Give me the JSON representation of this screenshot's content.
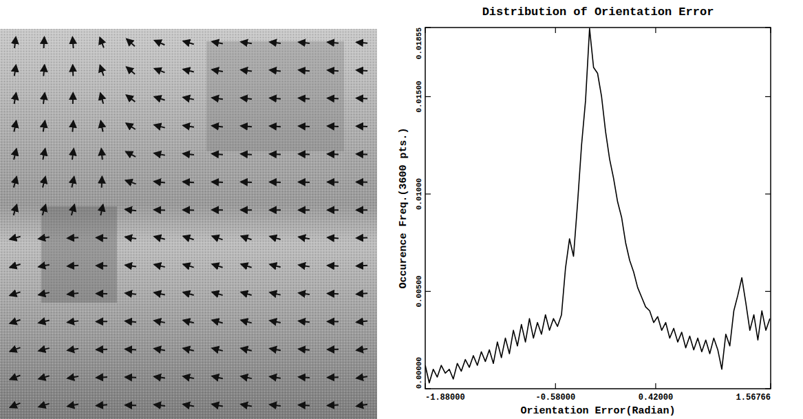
{
  "chart_data": {
    "type": "line",
    "title": "Distribution of Orientation Error",
    "x_label": "Orientation Error(Radian)",
    "y_label": "Occurence Freq.(3600 pts.)",
    "color": "#000000",
    "grid": false,
    "xlim": [
      -1.88,
      1.56766
    ],
    "xticks": [
      {
        "value": -1.88,
        "label": "-1.88000"
      },
      {
        "value": -0.58,
        "label": "-0.58000"
      },
      {
        "value": 0.42,
        "label": "0.42000"
      },
      {
        "value": 1.56766,
        "label": "1.56766"
      }
    ],
    "ylim": [
      0,
      0.01855
    ],
    "yticks": [
      {
        "value": 0,
        "label": "0.00000"
      },
      {
        "value": 0.005,
        "label": "0.00500"
      },
      {
        "value": 0.01,
        "label": "0.01000"
      },
      {
        "value": 0.015,
        "label": "0.01500"
      },
      {
        "value": 0.01855,
        "label": "0.01855"
      }
    ],
    "x": [
      -1.88,
      -1.84,
      -1.8,
      -1.76,
      -1.72,
      -1.68,
      -1.64,
      -1.6,
      -1.56,
      -1.52,
      -1.48,
      -1.44,
      -1.4,
      -1.36,
      -1.32,
      -1.28,
      -1.24,
      -1.2,
      -1.16,
      -1.12,
      -1.08,
      -1.04,
      -1.0,
      -0.96,
      -0.92,
      -0.88,
      -0.84,
      -0.8,
      -0.76,
      -0.72,
      -0.68,
      -0.64,
      -0.6,
      -0.56,
      -0.52,
      -0.48,
      -0.44,
      -0.4,
      -0.36,
      -0.32,
      -0.28,
      -0.24,
      -0.2,
      -0.16,
      -0.12,
      -0.08,
      -0.04,
      0.0,
      0.04,
      0.08,
      0.12,
      0.16,
      0.2,
      0.24,
      0.28,
      0.32,
      0.36,
      0.4,
      0.44,
      0.48,
      0.52,
      0.56,
      0.6,
      0.64,
      0.68,
      0.72,
      0.76,
      0.8,
      0.84,
      0.88,
      0.92,
      0.96,
      1.0,
      1.04,
      1.08,
      1.12,
      1.16,
      1.2,
      1.24,
      1.28,
      1.32,
      1.36,
      1.4,
      1.44,
      1.48,
      1.52,
      1.56
    ],
    "values": [
      0.0012,
      0.0003,
      0.001,
      0.0006,
      0.0012,
      0.0008,
      0.001,
      0.0005,
      0.0013,
      0.0009,
      0.0015,
      0.0011,
      0.0017,
      0.0012,
      0.0019,
      0.0014,
      0.002,
      0.0013,
      0.0024,
      0.0016,
      0.0026,
      0.0018,
      0.003,
      0.0022,
      0.0033,
      0.0024,
      0.0036,
      0.0026,
      0.0034,
      0.0028,
      0.0038,
      0.003,
      0.0036,
      0.0032,
      0.0038,
      0.0062,
      0.0077,
      0.0068,
      0.0095,
      0.0125,
      0.0148,
      0.0185,
      0.0165,
      0.0162,
      0.015,
      0.0132,
      0.0118,
      0.0108,
      0.0096,
      0.0088,
      0.0075,
      0.0066,
      0.006,
      0.0052,
      0.0047,
      0.0042,
      0.004,
      0.0034,
      0.0037,
      0.003,
      0.0034,
      0.0026,
      0.0031,
      0.0024,
      0.0029,
      0.0021,
      0.0027,
      0.002,
      0.0026,
      0.0019,
      0.0025,
      0.0018,
      0.0026,
      0.002,
      0.001,
      0.0028,
      0.0022,
      0.004,
      0.0048,
      0.0057,
      0.0044,
      0.003,
      0.0038,
      0.0025,
      0.004,
      0.003,
      0.0036
    ]
  }
}
